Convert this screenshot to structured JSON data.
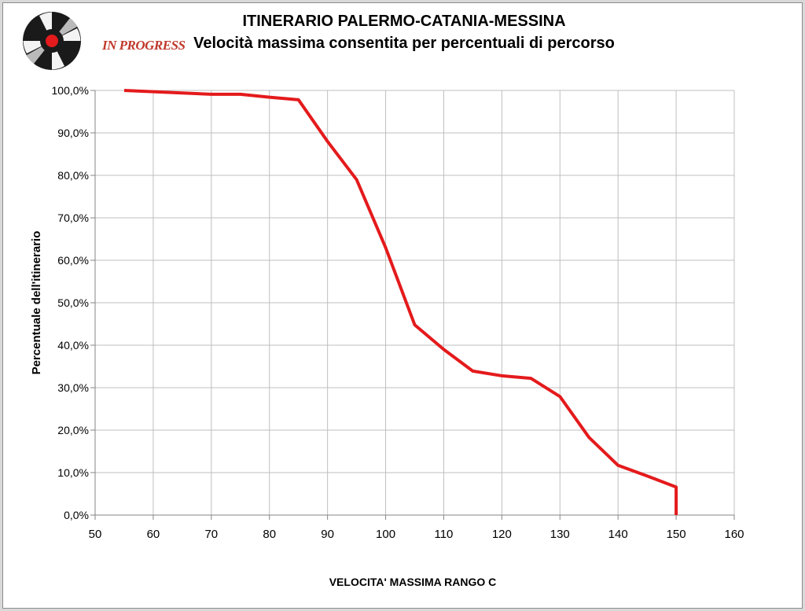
{
  "brand": {
    "logo_text": "IN PROGRESS"
  },
  "colors": {
    "line": "#e41a1c",
    "grid": "#bfbfbf",
    "axis": "#868686",
    "logo_dark": "#1a1a1a",
    "logo_red": "#e41a1c"
  },
  "chart_data": {
    "type": "line",
    "title": "ITINERARIO PALERMO-CATANIA-MESSINA",
    "subtitle": "Velocità massima consentita per percentuali di percorso",
    "xlabel": "VELOCITA' MASSIMA RANGO C",
    "ylabel": "Percentuale dell'itinerario",
    "xlim": [
      50,
      160
    ],
    "ylim": [
      0,
      100
    ],
    "x_ticks": [
      50,
      60,
      70,
      80,
      90,
      100,
      110,
      120,
      130,
      140,
      150,
      160
    ],
    "y_tick_labels": [
      "0,0%",
      "10,0%",
      "20,0%",
      "30,0%",
      "40,0%",
      "50,0%",
      "60,0%",
      "70,0%",
      "80,0%",
      "90,0%",
      "100,0%"
    ],
    "y_ticks": [
      0,
      10,
      20,
      30,
      40,
      50,
      60,
      70,
      80,
      90,
      100
    ],
    "grid": true,
    "legend": "none",
    "series": [
      {
        "x": [
          55,
          60,
          70,
          75,
          80,
          85,
          90,
          95,
          100,
          105,
          110,
          115,
          120,
          125,
          130,
          135,
          140,
          145,
          150,
          150
        ],
        "y": [
          100,
          99.7,
          99.1,
          99.1,
          98.4,
          97.8,
          88,
          79,
          63,
          44.8,
          39,
          33.9,
          32.8,
          32.2,
          27.9,
          18.3,
          11.7,
          9.2,
          6.6,
          0
        ]
      }
    ]
  }
}
